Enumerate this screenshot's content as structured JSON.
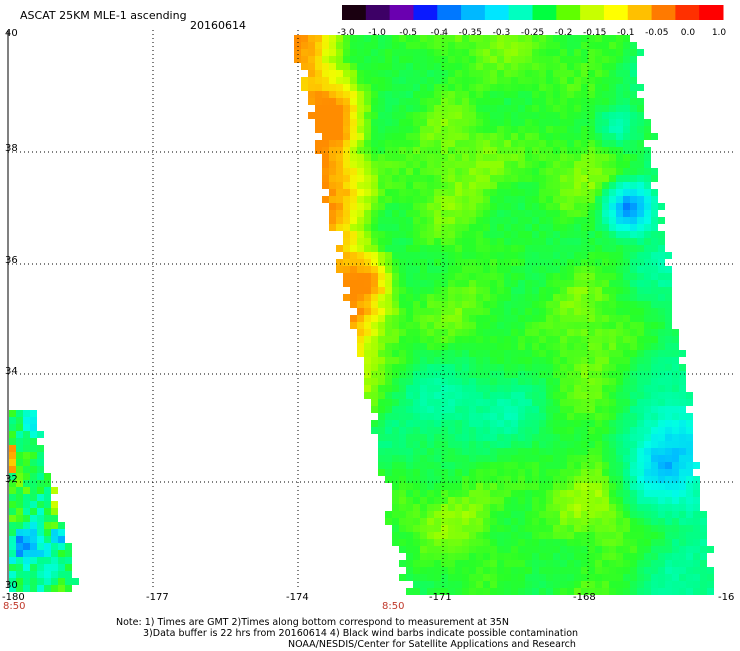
{
  "header": {
    "title": "ASCAT 25KM MLE-1 ascending",
    "date": "20160614"
  },
  "colorbar": {
    "labels": [
      "-3.0",
      "-1.0",
      "-0.5",
      "-0.4",
      "-0.35",
      "-0.3",
      "-0.25",
      "-0.2",
      "-0.15",
      "-0.1",
      "-0.05",
      "0.0",
      "1.0"
    ],
    "colors": [
      "#1a0010",
      "#3d0066",
      "#6a00b0",
      "#0a1aff",
      "#0078ff",
      "#00b8ff",
      "#00e6ff",
      "#00ffc0",
      "#00ff40",
      "#60ff00",
      "#c8ff00",
      "#ffff00",
      "#ffc000",
      "#ff7a00",
      "#ff3000",
      "#ff0000"
    ]
  },
  "axes": {
    "lat_labels": [
      "40",
      "38",
      "36",
      "34",
      "32",
      "30"
    ],
    "lon_labels": [
      "-180",
      "-177",
      "-174",
      "-171",
      "-168",
      "-16"
    ],
    "time_labels": [
      "8:50",
      "8:50"
    ]
  },
  "map": {
    "description_colors": {
      "high": "#ff9900",
      "mid": "#33ff33",
      "low": "#00ffdd",
      "lowest": "#0055ff"
    }
  },
  "notes": {
    "line1": "Note: 1) Times are GMT 2)Times along bottom correspond to measurement at 35N",
    "line2": "3)Data buffer is 22 hrs from 20160614 4) Black wind barbs indicate possible contamination",
    "line3": "NOAA/NESDIS/Center for Satellite Applications and Research"
  }
}
